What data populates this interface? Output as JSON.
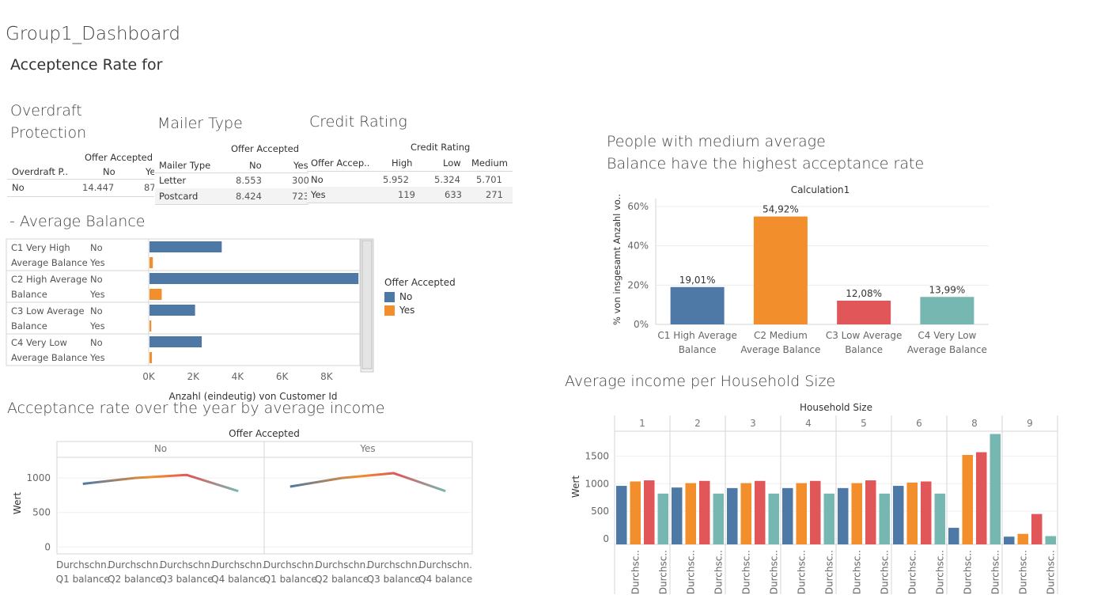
{
  "dashboard": {
    "title": "Group1_Dashboard",
    "subtitle": "Acceptence Rate for"
  },
  "colors": {
    "blue": "#4e79a7",
    "orange": "#f28e2b",
    "red": "#e15759",
    "teal": "#76b7b2"
  },
  "overdraft": {
    "title_line1": "Overdraft",
    "title_line2": "Protection",
    "header_group": "Offer Accepted",
    "row_header": "Overdraft P..",
    "col_no": "No",
    "col_yes": "Ye",
    "row_label": "No",
    "val_no": "14.447",
    "val_yes": "87"
  },
  "mailer": {
    "title": "Mailer Type",
    "header_group": "Offer Accepted",
    "row_header": "Mailer Type",
    "col_no": "No",
    "col_yes": "Yes",
    "rows": [
      {
        "label": "Letter",
        "no": "8.553",
        "yes": "300"
      },
      {
        "label": "Postcard",
        "no": "8.424",
        "yes": "723"
      }
    ]
  },
  "credit": {
    "title": "Credit Rating",
    "header_group": "Credit Rating",
    "row_header": "Offer Accep..",
    "col_high": "High",
    "col_low": "Low",
    "col_medium": "Medium",
    "rows": [
      {
        "label": "No",
        "high": "5.952",
        "low": "5.324",
        "medium": "5.701"
      },
      {
        "label": "Yes",
        "high": "119",
        "low": "633",
        "medium": "271"
      }
    ]
  },
  "legend": {
    "title": "Offer Accepted",
    "items": [
      "No",
      "Yes"
    ]
  },
  "chart_data": [
    {
      "id": "avg_balance",
      "type": "bar",
      "orientation": "horizontal",
      "title": "- Average Balance",
      "xlabel": "Anzahl (eindeutig) von Customer Id",
      "xticks": [
        "0K",
        "2K",
        "4K",
        "6K",
        "8K"
      ],
      "xlim": [
        0,
        9500
      ],
      "groups": [
        {
          "label_line1": "C1  Very High",
          "label_line2": "Average Balance",
          "no": 3250,
          "yes": 150
        },
        {
          "label_line1": "C2 High Average",
          "label_line2": "Balance",
          "no": 9400,
          "yes": 550
        },
        {
          "label_line1": "C3 Low Average",
          "label_line2": "Balance",
          "no": 2050,
          "yes": 80
        },
        {
          "label_line1": "C4  Very Low",
          "label_line2": "Average Balance",
          "no": 2350,
          "yes": 110
        }
      ],
      "series": [
        {
          "name": "No"
        },
        {
          "name": "Yes"
        }
      ]
    },
    {
      "id": "medium_balance",
      "type": "bar",
      "title_line1": "People with medium average",
      "title_line2": "Balance have the highest acceptance rate",
      "header": "Calculation1",
      "ylabel": "% von insgesamt Anzahl vo..",
      "ylim": [
        0,
        60
      ],
      "yticks": [
        "0%",
        "20%",
        "40%",
        "60%"
      ],
      "categories": [
        {
          "line1": "C1  High Average",
          "line2": "Balance"
        },
        {
          "line1": "C2 Medium",
          "line2": "Average Balance"
        },
        {
          "line1": "C3 Low Average",
          "line2": "Balance"
        },
        {
          "line1": "C4  Very Low",
          "line2": "Average Balance"
        }
      ],
      "values": [
        19.01,
        54.92,
        12.08,
        13.99
      ],
      "value_labels": [
        "19,01%",
        "54,92%",
        "12,08%",
        "13,99%"
      ]
    },
    {
      "id": "acceptance_year",
      "type": "line",
      "title": "Acceptance rate over the year by average income",
      "header": "Offer Accepted",
      "ylabel": "Wert",
      "ylim": [
        -100,
        1300
      ],
      "yticks": [
        "0",
        "500",
        "1000"
      ],
      "panels": [
        {
          "label": "No",
          "values": [
            915,
            1000,
            1045,
            810
          ]
        },
        {
          "label": "Yes",
          "values": [
            875,
            1000,
            1070,
            810
          ]
        }
      ],
      "categories": [
        {
          "line1": "Durchschn.",
          "line2": "Q1 balance"
        },
        {
          "line1": "Durchschn.",
          "line2": "Q2 balance"
        },
        {
          "line1": "Durchschn.",
          "line2": "Q3 balance"
        },
        {
          "line1": "Durchschn.",
          "line2": "Q4 balance"
        }
      ]
    },
    {
      "id": "household",
      "type": "bar",
      "title": "Average income per Household Size",
      "header": "Household Size",
      "ylabel": "Wert",
      "ylim": [
        -100,
        1950
      ],
      "yticks": [
        "0",
        "500",
        "1000",
        "1500"
      ],
      "xtick_label": "Durchsc..",
      "panels": [
        {
          "label": "1",
          "values": [
            960,
            1040,
            1060,
            820
          ]
        },
        {
          "label": "2",
          "values": [
            930,
            1010,
            1050,
            820
          ]
        },
        {
          "label": "3",
          "values": [
            920,
            1010,
            1050,
            820
          ]
        },
        {
          "label": "4",
          "values": [
            920,
            1010,
            1050,
            820
          ]
        },
        {
          "label": "5",
          "values": [
            920,
            1010,
            1060,
            820
          ]
        },
        {
          "label": "6",
          "values": [
            960,
            1020,
            1040,
            820
          ]
        },
        {
          "label": "8",
          "values": [
            200,
            1520,
            1570,
            1900
          ]
        },
        {
          "label": "9",
          "values": [
            40,
            90,
            450,
            50
          ]
        }
      ]
    }
  ]
}
